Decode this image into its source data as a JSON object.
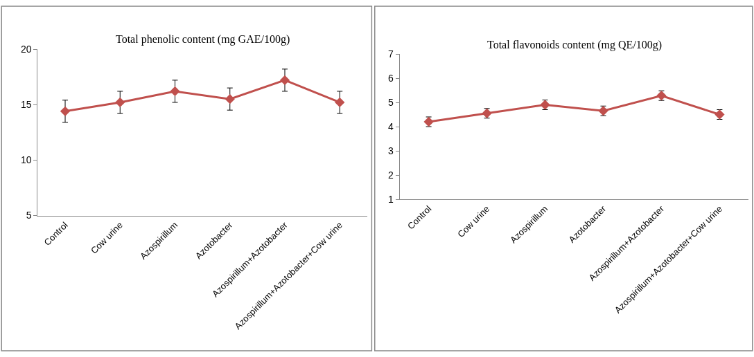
{
  "chart_data": [
    {
      "type": "line",
      "title": "Total phenolic content (mg GAE/100g)",
      "categories": [
        "Control",
        "Cow urine",
        "Azospirillum",
        "Azotobacter",
        "Azospirillum+Azotobacter",
        "Azospirillum+Azotobacter+Cow urine"
      ],
      "series": [
        {
          "color": "#c0504d",
          "values": [
            14.4,
            15.2,
            16.2,
            15.5,
            17.2,
            15.2
          ],
          "errors": [
            1.0,
            1.0,
            1.0,
            1.0,
            1.0,
            1.0
          ]
        }
      ],
      "ylim": [
        5,
        20
      ],
      "yticks": [
        5,
        10,
        15,
        20
      ],
      "marker": "diamond"
    },
    {
      "type": "line",
      "title": "Total flavonoids content (mg QE/100g)",
      "categories": [
        "Control",
        "Cow urine",
        "Azospirillum",
        "Azotobacter",
        "Azospirillum+Azotobacter",
        "Azospirillum+Azotobacter+Cow urine"
      ],
      "series": [
        {
          "color": "#c0504d",
          "values": [
            4.2,
            4.55,
            4.9,
            4.65,
            5.28,
            4.5
          ],
          "errors": [
            0.2,
            0.2,
            0.2,
            0.2,
            0.2,
            0.2
          ]
        }
      ],
      "ylim": [
        1,
        7
      ],
      "yticks": [
        1,
        2,
        3,
        4,
        5,
        6,
        7
      ],
      "marker": "diamond"
    }
  ]
}
